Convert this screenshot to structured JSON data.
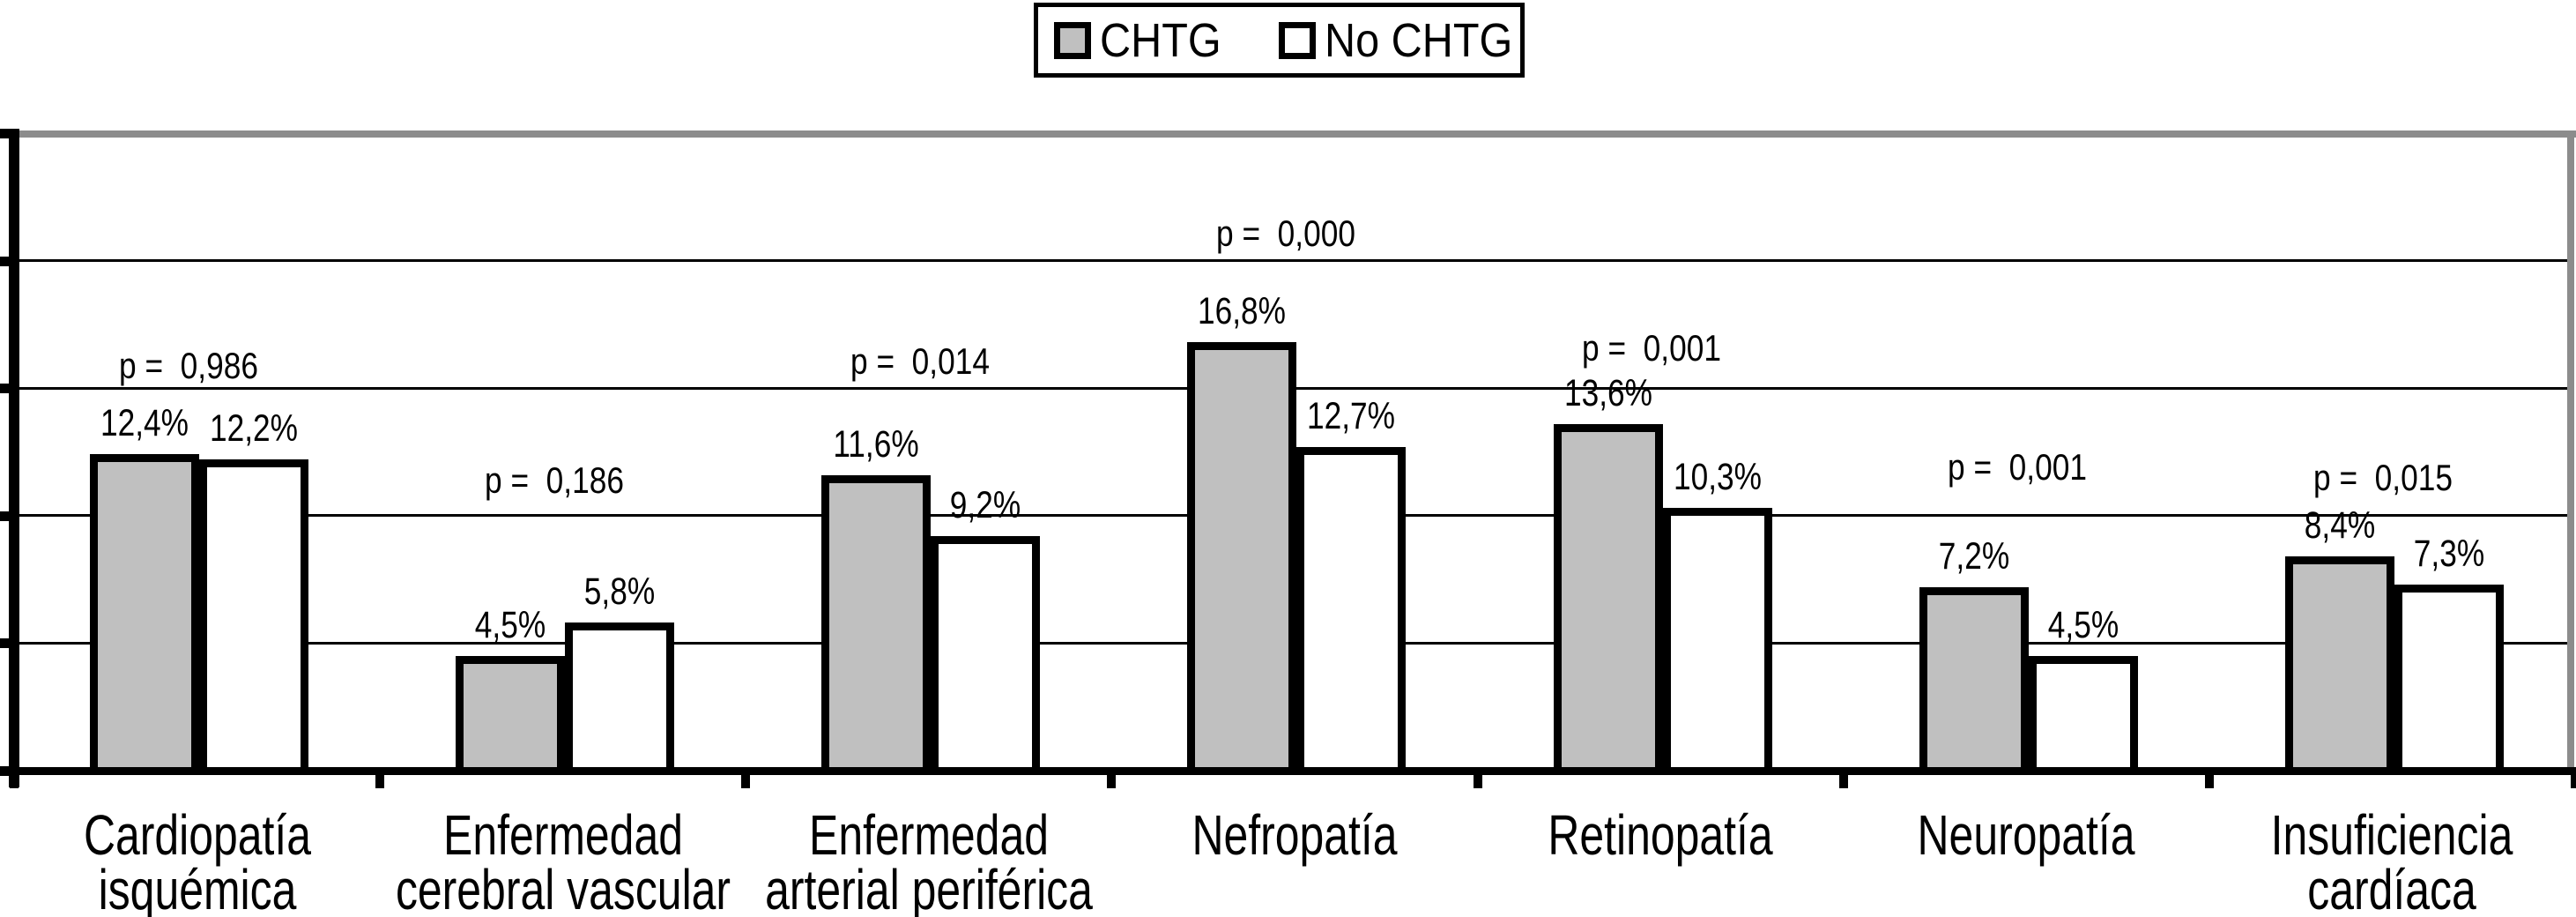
{
  "chart_data": {
    "type": "bar",
    "title": "",
    "categories": [
      "Cardiopatía\nisquémica",
      "Enfermedad\ncerebral vascular",
      "Enfermedad\narterial periférica",
      "Nefropatía",
      "Retinopatía",
      "Neuropatía",
      "Insuficiencia\ncardíaca"
    ],
    "series": [
      {
        "name": "CHTG",
        "values": [
          12.4,
          4.5,
          11.6,
          16.8,
          13.6,
          7.2,
          8.4
        ],
        "labels": [
          "12,4%",
          "4,5%",
          "11,6%",
          "16,8%",
          "13,6%",
          "7,2%",
          "8,4%"
        ],
        "color": "#C0C0C0"
      },
      {
        "name": "No CHTG",
        "values": [
          12.2,
          5.8,
          9.2,
          12.7,
          10.3,
          4.5,
          7.3
        ],
        "labels": [
          "12,2%",
          "5,8%",
          "9,2%",
          "12,7%",
          "10,3%",
          "4,5%",
          "7,3%"
        ],
        "color": "#FFFFFF"
      }
    ],
    "annotations": {
      "p_values": [
        "p =  0,986",
        "p =  0,186",
        "p =  0,014",
        "p =  0,000",
        "p =  0,001",
        "p =  0,001",
        "p =  0,015"
      ],
      "p_label_y_centers": [
        415,
        545,
        410,
        265,
        395,
        530,
        542
      ]
    },
    "legend": {
      "position": "top-center",
      "items": [
        "CHTG",
        "No CHTG"
      ]
    },
    "xlabel": "",
    "ylabel": "",
    "ylim": [
      0,
      25
    ],
    "grid_step": 5,
    "grid": true,
    "y_tick_labels_visible": false,
    "colors": {
      "bar_fill_chtg": "#C0C0C0",
      "bar_fill_no_chtg": "#FFFFFF",
      "bar_border": "#000000",
      "axis": "#000000",
      "plot_border_gray": "#8C8C8C",
      "background": "#FFFFFF"
    }
  }
}
